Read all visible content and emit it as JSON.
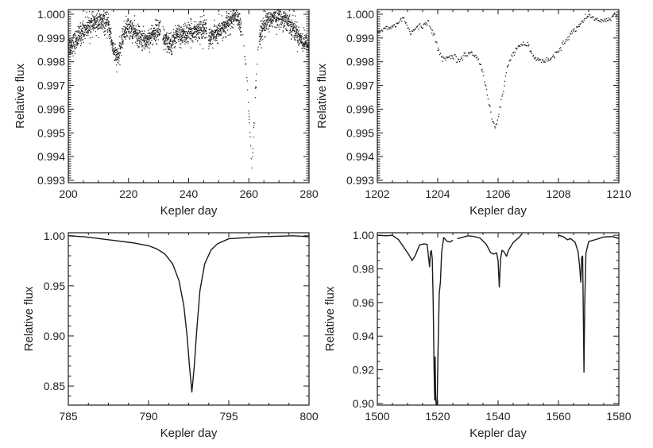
{
  "figure": {
    "background": "#ffffff",
    "ink": "#1a1a1a"
  },
  "chart_data": [
    {
      "id": "panel-a",
      "type": "scatter",
      "title": "",
      "xlabel": "Kepler day",
      "ylabel": "Relative flux",
      "xlim": [
        200,
        280
      ],
      "ylim": [
        0.9929,
        1.0002
      ],
      "xticks": [
        200,
        220,
        240,
        260,
        280
      ],
      "xtick_labels": [
        "200",
        "220",
        "240",
        "260",
        "280"
      ],
      "yticks": [
        0.993,
        0.994,
        0.995,
        0.996,
        0.997,
        0.998,
        0.999,
        1.0
      ],
      "ytick_labels": [
        "0.993",
        "0.994",
        "0.995",
        "0.996",
        "0.997",
        "0.998",
        "0.999",
        "1.000"
      ],
      "grid": false,
      "legend": "none",
      "marker": "dot",
      "noise": 0.00022,
      "series": [
        {
          "name": "flux",
          "x": [
            200,
            202,
            204,
            206,
            208,
            210,
            212,
            213.5,
            214.5,
            215.5,
            216.3,
            217,
            218,
            219,
            220,
            222,
            224,
            226,
            228,
            230,
            230.5,
            231.5,
            233,
            234.5,
            236,
            238,
            240,
            242,
            244,
            246,
            246.5,
            248,
            250,
            252,
            254,
            255,
            256,
            257,
            257.8,
            258.5,
            259.2,
            259.8,
            260.3,
            260.7,
            261.0,
            261.3,
            261.7,
            262.1,
            262.6,
            263.2,
            264,
            266,
            268,
            270,
            272,
            274,
            276,
            278,
            280
          ],
          "y": [
            0.99865,
            0.9988,
            0.99915,
            0.99945,
            0.9996,
            0.99965,
            0.99965,
            0.9995,
            0.9988,
            0.9983,
            0.99815,
            0.99835,
            0.999,
            0.99935,
            0.99945,
            0.99925,
            0.99895,
            0.9989,
            0.99915,
            0.99935,
            0.99945,
            0.99895,
            0.9988,
            0.9988,
            0.99915,
            0.9991,
            0.9992,
            0.9993,
            0.99935,
            0.9994,
            0.999,
            0.9991,
            0.99925,
            0.9995,
            0.99975,
            0.9999,
            0.99985,
            0.9996,
            0.99915,
            0.9985,
            0.9976,
            0.9964,
            0.9952,
            0.9942,
            0.99345,
            0.9942,
            0.9953,
            0.9964,
            0.9976,
            0.9987,
            0.9992,
            0.99965,
            0.99985,
            0.9999,
            0.9998,
            0.99955,
            0.9992,
            0.99885,
            0.99865
          ]
        }
      ]
    },
    {
      "id": "panel-b",
      "type": "scatter",
      "title": "",
      "xlabel": "Kepler day",
      "ylabel": "Relative flux",
      "xlim": [
        1202,
        1210
      ],
      "ylim": [
        0.9929,
        1.0002
      ],
      "xticks": [
        1202,
        1204,
        1206,
        1208,
        1210
      ],
      "xtick_labels": [
        "1202",
        "1204",
        "1206",
        "1208",
        "1210"
      ],
      "yticks": [
        0.993,
        0.994,
        0.995,
        0.996,
        0.997,
        0.998,
        0.999,
        1.0
      ],
      "ytick_labels": [
        "0.993",
        "0.994",
        "0.995",
        "0.996",
        "0.997",
        "0.998",
        "0.999",
        "1.000"
      ],
      "grid": false,
      "legend": "none",
      "marker": "dot",
      "noise": 6e-05,
      "series": [
        {
          "name": "flux",
          "x": [
            1202.0,
            1202.3,
            1202.6,
            1202.85,
            1203.1,
            1203.3,
            1203.5,
            1203.7,
            1203.9,
            1204.1,
            1204.3,
            1204.5,
            1204.7,
            1204.9,
            1205.1,
            1205.3,
            1205.5,
            1205.65,
            1205.8,
            1205.9,
            1206.0,
            1206.15,
            1206.3,
            1206.5,
            1206.75,
            1207.0,
            1207.2,
            1207.5,
            1207.8,
            1208.0,
            1208.3,
            1208.5,
            1208.8,
            1209.0,
            1209.3,
            1209.6,
            1209.8,
            1210.0
          ],
          "y": [
            0.99925,
            0.9994,
            0.99955,
            0.99985,
            0.9992,
            0.99945,
            0.9995,
            0.99965,
            0.999,
            0.9982,
            0.99815,
            0.99825,
            0.9981,
            0.99825,
            0.99835,
            0.9982,
            0.9976,
            0.9966,
            0.9956,
            0.99525,
            0.9956,
            0.9966,
            0.9978,
            0.99835,
            0.99875,
            0.99865,
            0.99815,
            0.998,
            0.99815,
            0.9985,
            0.999,
            0.9993,
            0.99965,
            0.99995,
            0.9997,
            0.99975,
            0.99995,
            1.0
          ]
        }
      ]
    },
    {
      "id": "panel-c",
      "type": "line",
      "title": "",
      "xlabel": "Kepler day",
      "ylabel": "Relative flux",
      "xlim": [
        785,
        800
      ],
      "ylim": [
        0.831,
        1.003
      ],
      "xticks": [
        785,
        790,
        795,
        800
      ],
      "xtick_labels": [
        "785",
        "790",
        "795",
        "800"
      ],
      "yticks": [
        0.85,
        0.9,
        0.95,
        1.0
      ],
      "ytick_labels": [
        "0.85",
        "0.90",
        "0.95",
        "1.00"
      ],
      "grid": false,
      "legend": "none",
      "series": [
        {
          "name": "flux",
          "x": [
            785,
            786,
            787,
            788,
            789,
            790,
            790.5,
            791,
            791.5,
            791.9,
            792.2,
            792.4,
            792.55,
            792.7,
            792.85,
            793.0,
            793.2,
            793.5,
            793.9,
            794.3,
            795,
            796,
            797,
            798,
            799,
            800
          ],
          "y": [
            1.0,
            0.999,
            0.997,
            0.995,
            0.993,
            0.99,
            0.987,
            0.982,
            0.972,
            0.955,
            0.93,
            0.9,
            0.87,
            0.844,
            0.87,
            0.905,
            0.945,
            0.972,
            0.986,
            0.992,
            0.997,
            0.998,
            0.999,
            0.9995,
            1.0,
            0.999
          ]
        }
      ]
    },
    {
      "id": "panel-d",
      "type": "line",
      "title": "",
      "xlabel": "Kepler day",
      "ylabel": "Relative flux",
      "xlim": [
        1500,
        1580
      ],
      "ylim": [
        0.899,
        1.0015
      ],
      "xticks": [
        1500,
        1520,
        1540,
        1560,
        1580
      ],
      "xtick_labels": [
        "1500",
        "1520",
        "1540",
        "1560",
        "1580"
      ],
      "yticks": [
        0.9,
        0.92,
        0.94,
        0.96,
        0.98,
        1.0
      ],
      "ytick_labels": [
        "0.90",
        "0.92",
        "0.94",
        "0.96",
        "0.98",
        "1.00"
      ],
      "grid": false,
      "legend": "none",
      "segments": [
        {
          "x": [
            1500,
            1503,
            1505,
            1507,
            1509,
            1510.5,
            1511.5,
            1512.5,
            1514,
            1515.5,
            1516.5,
            1517,
            1517.3,
            1517.6,
            1517.9,
            1518.2,
            1518.5,
            1518.8,
            1519.0,
            1519.15,
            1519.3,
            1519.5,
            1519.8,
            1520.1,
            1520.5,
            1520.9,
            1521.3,
            1522,
            1523,
            1524,
            1525
          ],
          "y": [
            1.0,
            1.0,
            0.999,
            0.997,
            0.993,
            0.988,
            0.985,
            0.988,
            0.994,
            0.995,
            0.994,
            0.986,
            0.981,
            0.99,
            0.991,
            0.986,
            0.96,
            0.92,
            0.902,
            0.927,
            0.905,
            0.899,
            0.899,
            0.93,
            0.966,
            0.972,
            0.99,
            0.998,
            0.997,
            0.996,
            0.997
          ]
        },
        {
          "x": [
            1526.5,
            1528,
            1530,
            1532,
            1534,
            1536,
            1537.5,
            1538.5,
            1539.5,
            1540.0,
            1540.4,
            1540.8,
            1541.3,
            1542,
            1542.8,
            1543.5,
            1545,
            1547,
            1548
          ],
          "y": [
            0.998,
            0.999,
            0.9995,
            1.0,
            0.999,
            0.995,
            0.99,
            0.989,
            0.99,
            0.985,
            0.969,
            0.985,
            0.991,
            0.99,
            0.987,
            0.991,
            0.996,
            0.999,
            1.001
          ]
        },
        {
          "x": [
            1560,
            1561.5,
            1563,
            1564,
            1565.5,
            1566.5,
            1567.0,
            1567.4,
            1567.7,
            1568.0,
            1568.2,
            1568.45,
            1568.7,
            1569.1,
            1570,
            1572,
            1575,
            1578,
            1580
          ],
          "y": [
            1.0,
            0.9995,
            0.997,
            0.998,
            0.997,
            0.99,
            0.982,
            0.972,
            0.987,
            0.988,
            0.96,
            0.919,
            0.96,
            0.99,
            0.997,
            0.998,
            0.9985,
            0.999,
            0.998
          ]
        }
      ]
    }
  ]
}
